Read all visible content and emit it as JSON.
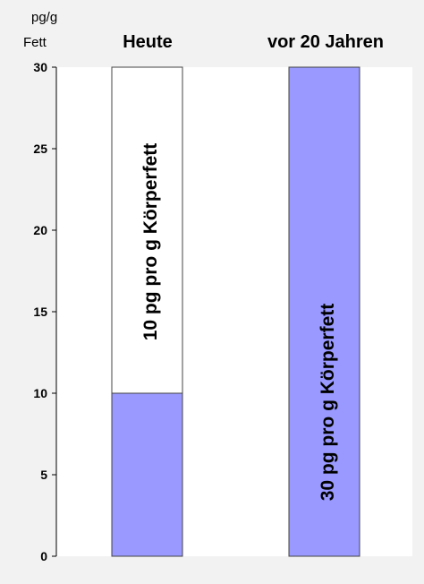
{
  "chart_data": {
    "type": "bar",
    "categories": [
      "Heute",
      "vor 20 Jahren"
    ],
    "values": [
      10,
      30
    ],
    "ylim": [
      0,
      30
    ],
    "yticks": [
      0,
      5,
      10,
      15,
      20,
      25,
      30
    ],
    "ylabel_lines": [
      "pg/g",
      "Fett"
    ],
    "data_labels": [
      "10 pg pro g Körperfett",
      "30 pg pro g Körperfett"
    ],
    "grid": false,
    "colors": {
      "bar": "#9999ff",
      "column_background": "#ffffff",
      "plot_background": "#ffffff",
      "page_background": "#f2f2f2"
    }
  }
}
